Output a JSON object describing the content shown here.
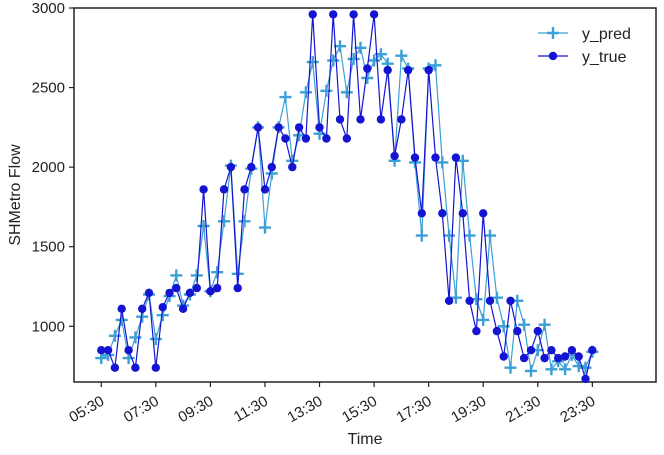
{
  "chart_data": {
    "type": "line",
    "xlabel": "Time",
    "ylabel": "SHMetro Flow",
    "x_tick_labels": [
      "05:30",
      "07:30",
      "09:30",
      "11:30",
      "13:30",
      "15:30",
      "17:30",
      "19:30",
      "21:30",
      "23:30"
    ],
    "x_tick_times": [
      "05:30",
      "07:30",
      "09:30",
      "11:30",
      "13:30",
      "15:30",
      "17:30",
      "19:30",
      "21:30",
      "23:30"
    ],
    "y_ticks": [
      1000,
      1500,
      2000,
      2500,
      3000
    ],
    "y_tick_labels": [
      "1000",
      "1500",
      "2000",
      "2500",
      "3000"
    ],
    "xlim": [
      "04:30",
      "25:50"
    ],
    "ylim": [
      650,
      3000
    ],
    "grid": false,
    "legend_position": "top-right",
    "colors": {
      "y_pred": "#3ba0d6",
      "y_true": "#1414d2"
    },
    "series": [
      {
        "name": "y_pred",
        "marker": "plus",
        "points": [
          [
            "05:30",
            800
          ],
          [
            "05:45",
            820
          ],
          [
            "06:00",
            940
          ],
          [
            "06:15",
            1040
          ],
          [
            "06:30",
            800
          ],
          [
            "06:45",
            930
          ],
          [
            "07:00",
            1060
          ],
          [
            "07:15",
            1200
          ],
          [
            "07:30",
            920
          ],
          [
            "07:45",
            1070
          ],
          [
            "08:00",
            1190
          ],
          [
            "08:15",
            1320
          ],
          [
            "08:30",
            1130
          ],
          [
            "08:45",
            1200
          ],
          [
            "09:00",
            1320
          ],
          [
            "09:15",
            1630
          ],
          [
            "09:30",
            1220
          ],
          [
            "09:45",
            1340
          ],
          [
            "10:00",
            1660
          ],
          [
            "10:15",
            2010
          ],
          [
            "10:30",
            1330
          ],
          [
            "10:45",
            1660
          ],
          [
            "11:00",
            1990
          ],
          [
            "11:15",
            2250
          ],
          [
            "11:30",
            1620
          ],
          [
            "11:45",
            1960
          ],
          [
            "12:00",
            2250
          ],
          [
            "12:15",
            2440
          ],
          [
            "12:30",
            2040
          ],
          [
            "12:45",
            2200
          ],
          [
            "13:00",
            2470
          ],
          [
            "13:15",
            2660
          ],
          [
            "13:30",
            2210
          ],
          [
            "13:45",
            2480
          ],
          [
            "14:00",
            2670
          ],
          [
            "14:15",
            2760
          ],
          [
            "14:30",
            2470
          ],
          [
            "14:45",
            2680
          ],
          [
            "15:00",
            2750
          ],
          [
            "15:15",
            2560
          ],
          [
            "15:30",
            2670
          ],
          [
            "15:45",
            2710
          ],
          [
            "16:00",
            2650
          ],
          [
            "16:15",
            2040
          ],
          [
            "16:30",
            2700
          ],
          [
            "16:45",
            2620
          ],
          [
            "17:00",
            2030
          ],
          [
            "17:15",
            1570
          ],
          [
            "17:30",
            2620
          ],
          [
            "17:45",
            2640
          ],
          [
            "18:00",
            2030
          ],
          [
            "18:15",
            1570
          ],
          [
            "18:30",
            1180
          ],
          [
            "18:45",
            2040
          ],
          [
            "19:00",
            1570
          ],
          [
            "19:15",
            1170
          ],
          [
            "19:30",
            1040
          ],
          [
            "19:45",
            1570
          ],
          [
            "20:00",
            1180
          ],
          [
            "20:15",
            1000
          ],
          [
            "20:30",
            740
          ],
          [
            "20:45",
            1160
          ],
          [
            "21:00",
            1010
          ],
          [
            "21:15",
            720
          ],
          [
            "21:30",
            850
          ],
          [
            "21:45",
            1010
          ],
          [
            "22:00",
            730
          ],
          [
            "22:15",
            780
          ],
          [
            "22:30",
            730
          ],
          [
            "22:45",
            820
          ],
          [
            "23:00",
            750
          ],
          [
            "23:15",
            740
          ],
          [
            "23:30",
            840
          ]
        ]
      },
      {
        "name": "y_true",
        "marker": "circle",
        "points": [
          [
            "05:30",
            850
          ],
          [
            "05:45",
            850
          ],
          [
            "06:00",
            740
          ],
          [
            "06:15",
            1110
          ],
          [
            "06:30",
            850
          ],
          [
            "06:45",
            740
          ],
          [
            "07:00",
            1110
          ],
          [
            "07:15",
            1210
          ],
          [
            "07:30",
            740
          ],
          [
            "07:45",
            1120
          ],
          [
            "08:00",
            1210
          ],
          [
            "08:15",
            1240
          ],
          [
            "08:30",
            1110
          ],
          [
            "08:45",
            1210
          ],
          [
            "09:00",
            1240
          ],
          [
            "09:15",
            1860
          ],
          [
            "09:30",
            1220
          ],
          [
            "09:45",
            1240
          ],
          [
            "10:00",
            1860
          ],
          [
            "10:15",
            2000
          ],
          [
            "10:30",
            1240
          ],
          [
            "10:45",
            1860
          ],
          [
            "11:00",
            2000
          ],
          [
            "11:15",
            2250
          ],
          [
            "11:30",
            1860
          ],
          [
            "11:45",
            2000
          ],
          [
            "12:00",
            2250
          ],
          [
            "12:15",
            2180
          ],
          [
            "12:30",
            2000
          ],
          [
            "12:45",
            2250
          ],
          [
            "13:00",
            2180
          ],
          [
            "13:15",
            2960
          ],
          [
            "13:30",
            2250
          ],
          [
            "13:45",
            2180
          ],
          [
            "14:00",
            2960
          ],
          [
            "14:15",
            2300
          ],
          [
            "14:30",
            2180
          ],
          [
            "14:45",
            2960
          ],
          [
            "15:00",
            2300
          ],
          [
            "15:15",
            2620
          ],
          [
            "15:30",
            2960
          ],
          [
            "15:45",
            2300
          ],
          [
            "16:00",
            2610
          ],
          [
            "16:15",
            2070
          ],
          [
            "16:30",
            2300
          ],
          [
            "16:45",
            2610
          ],
          [
            "17:00",
            2060
          ],
          [
            "17:15",
            1710
          ],
          [
            "17:30",
            2610
          ],
          [
            "17:45",
            2060
          ],
          [
            "18:00",
            1710
          ],
          [
            "18:15",
            1160
          ],
          [
            "18:30",
            2060
          ],
          [
            "18:45",
            1710
          ],
          [
            "19:00",
            1160
          ],
          [
            "19:15",
            970
          ],
          [
            "19:30",
            1710
          ],
          [
            "19:45",
            1160
          ],
          [
            "20:00",
            970
          ],
          [
            "20:15",
            810
          ],
          [
            "20:30",
            1160
          ],
          [
            "20:45",
            970
          ],
          [
            "21:00",
            800
          ],
          [
            "21:15",
            850
          ],
          [
            "21:30",
            970
          ],
          [
            "21:45",
            800
          ],
          [
            "22:00",
            850
          ],
          [
            "22:15",
            800
          ],
          [
            "22:30",
            810
          ],
          [
            "22:45",
            850
          ],
          [
            "23:00",
            810
          ],
          [
            "23:15",
            670
          ],
          [
            "23:30",
            850
          ]
        ]
      }
    ]
  }
}
